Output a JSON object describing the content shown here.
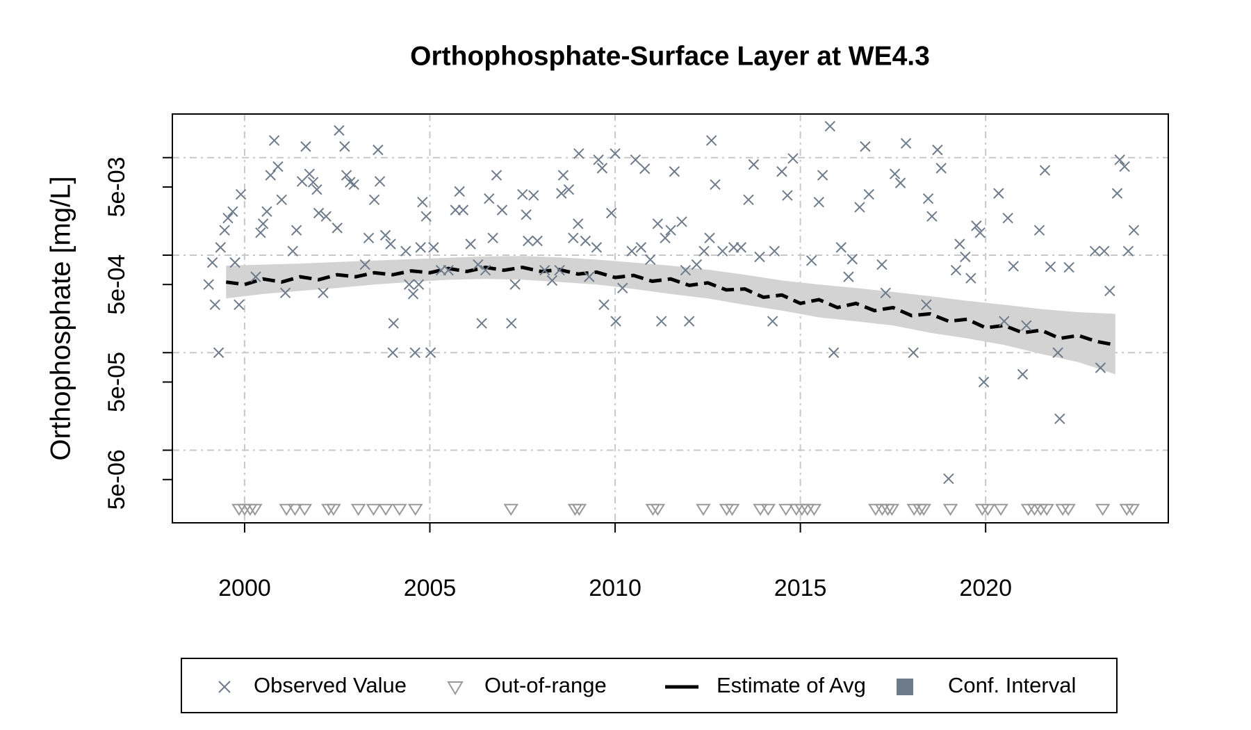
{
  "chart_data": {
    "type": "scatter",
    "title": "Orthophosphate-Surface Layer at WE4.3",
    "y_label": "Orthophosphate [mg/L]",
    "y_log": true,
    "grid": true,
    "xlim": [
      1998.05,
      2024.93
    ],
    "xticks": [
      2000,
      2005,
      2010,
      2015,
      2020
    ],
    "ylim": [
      1.8e-06,
      0.028
    ],
    "yticks": [
      {
        "value": 0.005,
        "label": "5e-03"
      },
      {
        "value": 0.0005,
        "label": "5e-04"
      },
      {
        "value": 5e-05,
        "label": "5e-05"
      },
      {
        "value": 5e-06,
        "label": "5e-06"
      }
    ],
    "minor_yticks": [
      0.01,
      0.001,
      0.0001,
      1e-05
    ],
    "series": [
      {
        "name": "Observed Value",
        "color": "#6e7b8b",
        "marker": "x",
        "x": [
          1999.03,
          1999.13,
          1999.2,
          1999.3,
          1999.35,
          1999.46,
          1999.55,
          1999.68,
          1999.74,
          1999.85,
          1999.9,
          2000.3,
          2000.43,
          2000.5,
          2000.6,
          2000.7,
          2000.8,
          2000.9,
          2001.0,
          2001.1,
          2001.3,
          2001.4,
          2001.55,
          2001.65,
          2001.75,
          2001.85,
          2001.95,
          2002.0,
          2002.12,
          2002.2,
          2002.5,
          2002.55,
          2002.7,
          2002.75,
          2002.85,
          2002.95,
          2003.25,
          2003.35,
          2003.5,
          2003.6,
          2003.65,
          2003.8,
          2003.94,
          2004.0,
          2004.02,
          2004.35,
          2004.44,
          2004.55,
          2004.6,
          2004.7,
          2004.75,
          2004.8,
          2004.9,
          2005.02,
          2005.1,
          2005.3,
          2005.5,
          2005.69,
          2005.8,
          2005.9,
          2006.1,
          2006.3,
          2006.4,
          2006.5,
          2006.6,
          2006.7,
          2006.8,
          2006.95,
          2007.2,
          2007.3,
          2007.5,
          2007.6,
          2007.65,
          2007.8,
          2007.9,
          2008.1,
          2008.3,
          2008.5,
          2008.55,
          2008.6,
          2008.75,
          2008.87,
          2009.0,
          2009.02,
          2009.2,
          2009.3,
          2009.5,
          2009.55,
          2009.65,
          2009.7,
          2009.9,
          2010.0,
          2010.02,
          2010.2,
          2010.45,
          2010.55,
          2010.7,
          2010.8,
          2010.95,
          2011.15,
          2011.25,
          2011.35,
          2011.5,
          2011.6,
          2011.8,
          2011.9,
          2012.0,
          2012.2,
          2012.4,
          2012.55,
          2012.6,
          2012.7,
          2012.9,
          2013.2,
          2013.4,
          2013.6,
          2013.74,
          2013.9,
          2014.25,
          2014.3,
          2014.5,
          2014.65,
          2014.8,
          2015.3,
          2015.5,
          2015.6,
          2015.8,
          2015.9,
          2016.1,
          2016.3,
          2016.4,
          2016.6,
          2016.75,
          2016.85,
          2017.2,
          2017.3,
          2017.55,
          2017.7,
          2017.85,
          2018.05,
          2018.4,
          2018.45,
          2018.55,
          2018.7,
          2018.8,
          2019.0,
          2019.2,
          2019.3,
          2019.45,
          2019.6,
          2019.75,
          2019.85,
          2019.95,
          2020.35,
          2020.5,
          2020.6,
          2020.75,
          2021.0,
          2021.1,
          2021.45,
          2021.6,
          2021.75,
          2021.95,
          2022.0,
          2022.25,
          2022.95,
          2023.1,
          2023.2,
          2023.35,
          2023.55,
          2023.62,
          2023.75,
          2023.85,
          2024.0
        ],
        "values": [
          0.0005,
          0.00084,
          0.00031,
          0.0001,
          0.0012,
          0.0018,
          0.0024,
          0.0028,
          0.00084,
          0.00031,
          0.0042,
          0.0006,
          0.0017,
          0.0021,
          0.0028,
          0.0066,
          0.015,
          0.0081,
          0.0037,
          0.00041,
          0.0011,
          0.0018,
          0.0057,
          0.013,
          0.0068,
          0.0056,
          0.0047,
          0.0027,
          0.00041,
          0.0025,
          0.0019,
          0.019,
          0.013,
          0.0066,
          0.0056,
          0.0053,
          0.0008,
          0.0015,
          0.0037,
          0.012,
          0.0057,
          0.0016,
          0.0013,
          0.0001,
          0.0002,
          0.0011,
          0.0005,
          0.0004,
          0.0001,
          0.0005,
          0.0012,
          0.0035,
          0.0025,
          0.0001,
          0.0012,
          0.0007,
          0.0007,
          0.0029,
          0.0045,
          0.0029,
          0.0013,
          0.0008,
          0.0002,
          0.0007,
          0.0038,
          0.0015,
          0.0066,
          0.0029,
          0.0002,
          0.0005,
          0.0042,
          0.0026,
          0.0014,
          0.0041,
          0.0014,
          0.0007,
          0.00055,
          0.0007,
          0.0043,
          0.0066,
          0.0047,
          0.0015,
          0.0021,
          0.011,
          0.0014,
          0.0006,
          0.0012,
          0.0095,
          0.0078,
          0.00031,
          0.0027,
          0.011,
          0.00021,
          0.00046,
          0.0011,
          0.0095,
          0.0012,
          0.0077,
          0.0009,
          0.0021,
          0.00021,
          0.0015,
          0.0018,
          0.0072,
          0.0022,
          0.0007,
          0.00021,
          0.0008,
          0.0011,
          0.0015,
          0.015,
          0.0053,
          0.0011,
          0.0012,
          0.0012,
          0.0037,
          0.0085,
          0.00096,
          0.00021,
          0.0011,
          0.0072,
          0.0041,
          0.0098,
          0.00088,
          0.0035,
          0.0066,
          0.021,
          0.0001,
          0.0012,
          0.0006,
          0.00091,
          0.0031,
          0.013,
          0.0042,
          0.0008,
          0.00041,
          0.0068,
          0.0055,
          0.014,
          0.0001,
          0.00031,
          0.0038,
          0.0025,
          0.012,
          0.0078,
          5.1e-06,
          0.0007,
          0.0013,
          0.00096,
          0.00058,
          0.002,
          0.0017,
          5e-05,
          0.0043,
          0.00021,
          0.0024,
          0.00077,
          6e-05,
          0.00019,
          0.0018,
          0.0074,
          0.00076,
          0.0001,
          2.1e-05,
          0.00075,
          0.0011,
          7e-05,
          0.0011,
          0.00043,
          0.0043,
          0.0095,
          0.0081,
          0.0011,
          0.0018
        ]
      },
      {
        "name": "Out-of-range",
        "color": "#999999",
        "marker": "triangle",
        "x": [
          1999.85,
          2000.0,
          2000.15,
          2000.28,
          2001.13,
          2001.36,
          2001.62,
          2002.27,
          2002.4,
          2003.07,
          2003.48,
          2003.81,
          2004.18,
          2004.61,
          2007.19,
          2008.92,
          2009.03,
          2011.02,
          2011.15,
          2012.38,
          2013.01,
          2013.16,
          2013.92,
          2014.13,
          2014.61,
          2014.89,
          2015.04,
          2015.19,
          2015.37,
          2017.03,
          2017.21,
          2017.36,
          2017.47,
          2018.07,
          2018.23,
          2018.33,
          2019.05,
          2019.91,
          2020.06,
          2020.41,
          2021.15,
          2021.32,
          2021.49,
          2021.65,
          2022.08,
          2022.23,
          2023.16,
          2023.81,
          2023.96
        ],
        "values": [
          2.5e-06,
          2.5e-06,
          2.5e-06,
          2.5e-06,
          2.5e-06,
          2.5e-06,
          2.5e-06,
          2.5e-06,
          2.5e-06,
          2.5e-06,
          2.5e-06,
          2.5e-06,
          2.5e-06,
          2.5e-06,
          2.5e-06,
          2.5e-06,
          2.5e-06,
          2.5e-06,
          2.5e-06,
          2.5e-06,
          2.5e-06,
          2.5e-06,
          2.5e-06,
          2.5e-06,
          2.5e-06,
          2.5e-06,
          2.5e-06,
          2.5e-06,
          2.5e-06,
          2.5e-06,
          2.5e-06,
          2.5e-06,
          2.5e-06,
          2.5e-06,
          2.5e-06,
          2.5e-06,
          2.5e-06,
          2.5e-06,
          2.5e-06,
          2.5e-06,
          2.5e-06,
          2.5e-06,
          2.5e-06,
          2.5e-06,
          2.5e-06,
          2.5e-06,
          2.5e-06,
          2.5e-06,
          2.5e-06
        ]
      },
      {
        "name": "Estimate of Avg",
        "color": "#000000",
        "marker": "dashed-line",
        "x": [
          1999.5,
          2000.0,
          2000.5,
          2001.0,
          2001.5,
          2002.0,
          2002.5,
          2003.0,
          2003.5,
          2004.0,
          2004.5,
          2005.0,
          2005.5,
          2006.0,
          2006.5,
          2007.0,
          2007.5,
          2008.0,
          2008.5,
          2009.0,
          2009.5,
          2010.0,
          2010.5,
          2011.0,
          2011.5,
          2012.0,
          2012.5,
          2013.0,
          2013.5,
          2014.0,
          2014.5,
          2015.0,
          2015.5,
          2016.0,
          2016.5,
          2017.0,
          2017.5,
          2018.0,
          2018.5,
          2019.0,
          2019.5,
          2020.0,
          2020.5,
          2021.0,
          2021.5,
          2022.0,
          2022.5,
          2023.0,
          2023.5
        ],
        "values": [
          0.00053,
          0.0005,
          0.00057,
          0.00053,
          0.0006,
          0.00056,
          0.00063,
          0.0006,
          0.00066,
          0.00063,
          0.00069,
          0.00066,
          0.00073,
          0.00068,
          0.00075,
          0.0007,
          0.00075,
          0.00068,
          0.00071,
          0.00064,
          0.00067,
          0.00059,
          0.00062,
          0.00054,
          0.00057,
          0.00049,
          0.00052,
          0.00044,
          0.00045,
          0.00037,
          0.00039,
          0.00032,
          0.00035,
          0.00029,
          0.00032,
          0.00027,
          0.00029,
          0.00024,
          0.00025,
          0.00021,
          0.00022,
          0.00018,
          0.00019,
          0.00016,
          0.00017,
          0.00014,
          0.00015,
          0.00013,
          0.00012
        ]
      },
      {
        "name": "Conf. Interval",
        "color": "#d3d3d3",
        "legend_color": "#6e7b8b",
        "marker": "area",
        "x": [
          1999.5,
          2000.5,
          2001.5,
          2002.5,
          2003.5,
          2004.5,
          2005.5,
          2006.5,
          2007.5,
          2008.5,
          2009.5,
          2010.5,
          2011.5,
          2012.5,
          2013.5,
          2014.5,
          2015.5,
          2016.5,
          2017.5,
          2018.5,
          2019.5,
          2020.5,
          2021.5,
          2022.5,
          2023.5
        ],
        "lower": [
          0.00036,
          0.0004,
          0.00043,
          0.00046,
          0.0005,
          0.00053,
          0.00056,
          0.00057,
          0.00056,
          0.00053,
          0.0005,
          0.00045,
          0.0004,
          0.00036,
          0.00031,
          0.00027,
          0.00023,
          0.00021,
          0.00019,
          0.00016,
          0.00014,
          0.00012,
          9.7e-05,
          8e-05,
          6e-05
        ],
        "upper": [
          0.00078,
          0.0008,
          0.00082,
          0.00085,
          0.00088,
          0.00091,
          0.00094,
          0.00097,
          0.00098,
          0.00095,
          0.0009,
          0.00084,
          0.00078,
          0.00071,
          0.00063,
          0.00055,
          0.0005,
          0.00046,
          0.00042,
          0.00038,
          0.00034,
          0.00031,
          0.00028,
          0.00026,
          0.00025
        ]
      }
    ]
  }
}
